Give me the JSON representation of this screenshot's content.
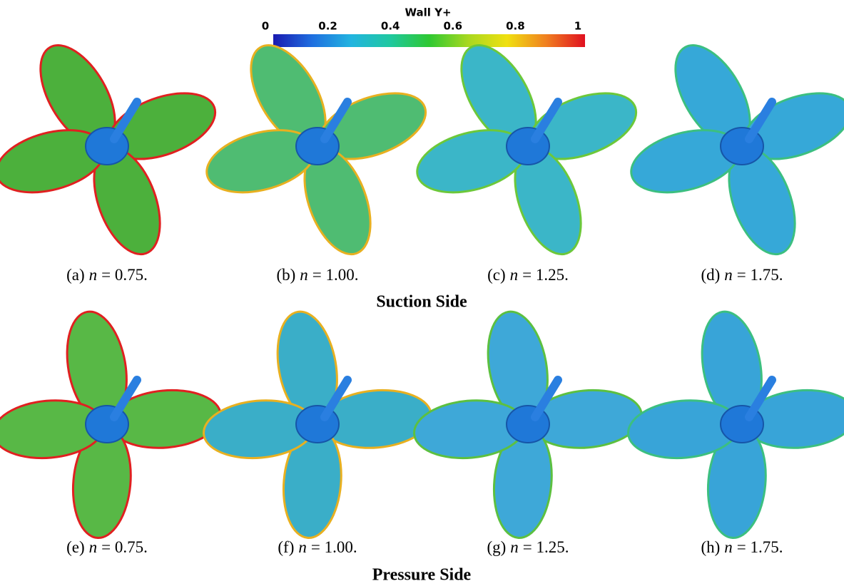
{
  "colorbar": {
    "title": "Wall Y+",
    "lim": [
      0,
      1
    ],
    "ticks": [
      0,
      0.2,
      0.4,
      0.6,
      0.8,
      1
    ],
    "colors": [
      "#1a1ab0",
      "#1f6fe0",
      "#22b4e0",
      "#1fc8a0",
      "#2ec832",
      "#a8d820",
      "#f0e010",
      "#f08020",
      "#e01020"
    ]
  },
  "rows": [
    {
      "title": "Suction Side",
      "panels": [
        {
          "tag": "(a)",
          "symbol": "n",
          "text": "= 0.75.",
          "blade_color": "#4cb03c",
          "edge_color": "#e02020"
        },
        {
          "tag": "(b)",
          "symbol": "n",
          "text": "= 1.00.",
          "blade_color": "#4fbc72",
          "edge_color": "#e8b020"
        },
        {
          "tag": "(c)",
          "symbol": "n",
          "text": "= 1.25.",
          "blade_color": "#3bb6c8",
          "edge_color": "#6cc83a"
        },
        {
          "tag": "(d)",
          "symbol": "n",
          "text": "= 1.75.",
          "blade_color": "#36a8d8",
          "edge_color": "#3cbf80"
        }
      ]
    },
    {
      "title": "Pressure Side",
      "panels": [
        {
          "tag": "(e)",
          "symbol": "n",
          "text": "= 0.75.",
          "blade_color": "#58b846",
          "edge_color": "#e02020"
        },
        {
          "tag": "(f)",
          "symbol": "n",
          "text": "= 1.00.",
          "blade_color": "#3aaec8",
          "edge_color": "#e8b020"
        },
        {
          "tag": "(g)",
          "symbol": "n",
          "text": "= 1.25.",
          "blade_color": "#3ea8d8",
          "edge_color": "#5cc040"
        },
        {
          "tag": "(h)",
          "symbol": "n",
          "text": "= 1.75.",
          "blade_color": "#38a4d8",
          "edge_color": "#3cbf80"
        }
      ]
    }
  ]
}
